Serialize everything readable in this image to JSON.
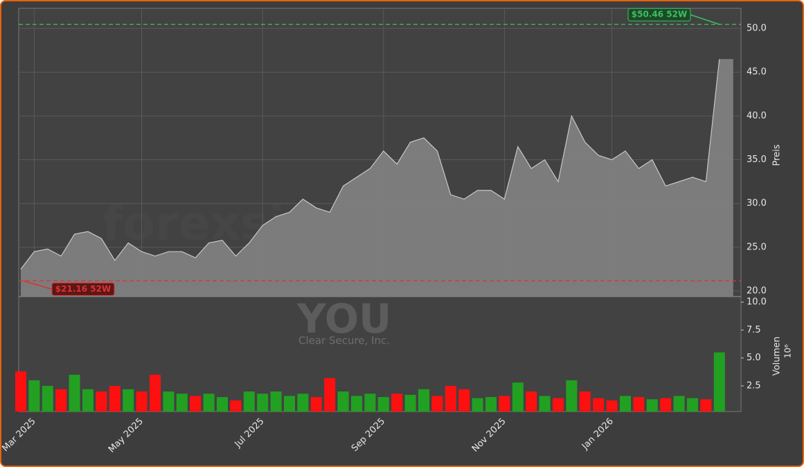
{
  "chart_data": {
    "type": "stock",
    "watermark": [
      "forexsignale.trade",
      "YOU",
      "Clear Secure, Inc."
    ],
    "ylabel": "Preis",
    "y2label": "Volumen",
    "y2scale_label": "10⁶",
    "categories": [
      null,
      "Mar 2025",
      null,
      null,
      null,
      null,
      null,
      null,
      null,
      "May 2025",
      null,
      null,
      null,
      null,
      null,
      null,
      null,
      null,
      "Jul 2025",
      null,
      null,
      null,
      null,
      null,
      null,
      null,
      null,
      "Sep 2025",
      null,
      null,
      null,
      null,
      null,
      null,
      null,
      null,
      "Nov 2025",
      null,
      null,
      null,
      null,
      null,
      null,
      null,
      "Jan 2026",
      null,
      null,
      null,
      null,
      null,
      null,
      null,
      null
    ],
    "series": [
      {
        "name": "Preis",
        "color": "#808080",
        "values": [
          22.5,
          24.5,
          24.8,
          24.0,
          26.5,
          26.8,
          26.0,
          23.5,
          25.5,
          24.5,
          24.0,
          24.5,
          24.5,
          23.8,
          25.5,
          25.8,
          24.0,
          25.5,
          27.5,
          28.5,
          29.0,
          30.5,
          29.5,
          29.0,
          32.0,
          33.0,
          34.0,
          36.0,
          34.5,
          37.0,
          37.5,
          36.0,
          31.0,
          30.5,
          31.5,
          31.5,
          30.5,
          36.5,
          34.0,
          35.0,
          32.5,
          40.0,
          37.0,
          35.5,
          35.0,
          36.0,
          34.0,
          35.0,
          32.0,
          32.5,
          33.0,
          32.5,
          46.5
        ]
      },
      {
        "name": "Volumen",
        "axis": "y2",
        "up_color": "#22a022",
        "down_color": "#ff1010",
        "values": [
          3.8,
          3.0,
          2.5,
          2.2,
          3.5,
          2.2,
          2.0,
          2.5,
          2.2,
          2.0,
          3.5,
          2.0,
          1.8,
          1.6,
          1.8,
          1.5,
          1.2,
          2.0,
          1.8,
          2.0,
          1.6,
          1.8,
          1.5,
          3.2,
          2.0,
          1.6,
          1.8,
          1.5,
          1.8,
          1.7,
          2.2,
          1.6,
          2.5,
          2.2,
          1.4,
          1.5,
          1.6,
          2.8,
          2.0,
          1.6,
          1.4,
          3.0,
          2.0,
          1.4,
          1.2,
          1.6,
          1.5,
          1.3,
          1.4,
          1.6,
          1.4,
          1.3,
          5.5
        ]
      }
    ],
    "annotations": [
      {
        "label": "$50.46 52W",
        "value": 50.46,
        "color": "#3cc060"
      },
      {
        "label": "$21.16 52W",
        "value": 21.16,
        "color": "#e03030"
      }
    ],
    "ylim": [
      19.37,
      52.3
    ],
    "yticks": [
      {
        "value": 20,
        "label": "20.0"
      },
      {
        "value": 25,
        "label": "25.0"
      },
      {
        "value": 30,
        "label": "30.0"
      },
      {
        "value": 35,
        "label": "35.0"
      },
      {
        "value": 40,
        "label": "40.0"
      },
      {
        "value": 45,
        "label": "45.0"
      },
      {
        "value": 50,
        "label": "50.0"
      }
    ],
    "y2lim": [
      0.2,
      10.5
    ],
    "y2ticks": [
      2.5,
      {
        "value": 5,
        "label": "5.0"
      },
      7.5,
      {
        "value": 10,
        "label": "10.0"
      }
    ],
    "grid": true
  }
}
